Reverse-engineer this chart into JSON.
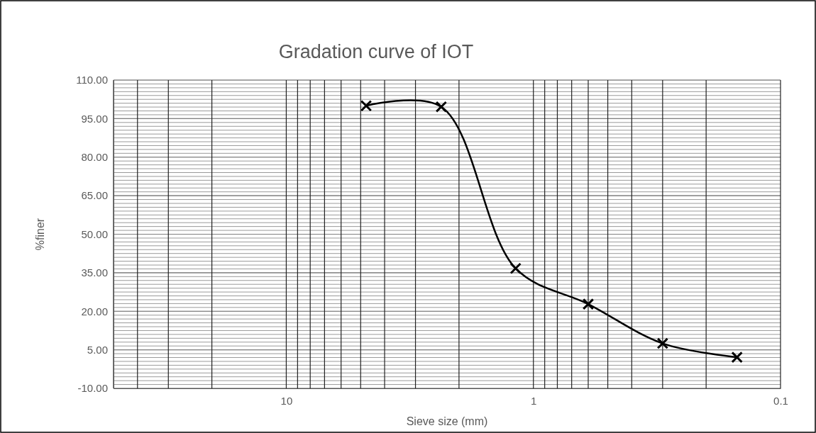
{
  "chart_data": {
    "type": "line",
    "title": "Gradation curve of IOT",
    "xlabel": "Sieve size (mm)",
    "ylabel": "%finer",
    "log": "x",
    "xlim": [
      50,
      0.1
    ],
    "xticks": [
      10,
      1,
      0.1
    ],
    "ylim": [
      -10,
      110
    ],
    "yticks": [
      {
        "value": -10,
        "label": "-10.00"
      },
      {
        "value": 5,
        "label": "5.00"
      },
      {
        "value": 20,
        "label": "20.00"
      },
      {
        "value": 35,
        "label": "35.00"
      },
      {
        "value": 50,
        "label": "50.00"
      },
      {
        "value": 65,
        "label": "65.00"
      },
      {
        "value": 80,
        "label": "80.00"
      },
      {
        "value": 95,
        "label": "95.00"
      },
      {
        "value": 110,
        "label": "110.00"
      }
    ],
    "grid": true,
    "marker": "cross",
    "line_style": "solid",
    "series": [
      {
        "color": "#000000",
        "x": [
          4.75,
          2.36,
          1.18,
          0.6,
          0.3,
          0.15
        ],
        "values": [
          100,
          99.6,
          36.7,
          22.8,
          7.5,
          2.1
        ]
      }
    ]
  }
}
